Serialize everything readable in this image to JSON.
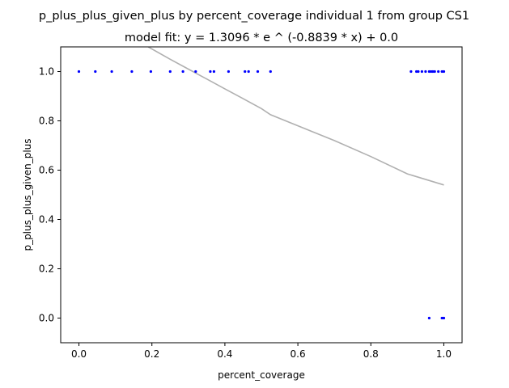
{
  "chart_data": {
    "type": "scatter",
    "title": "p_plus_plus_given_plus by percent_coverage individual 1 from group CS1",
    "subtitle": "model fit: y = 1.3096 * e ^ (-0.8839 * x) + 0.0",
    "xlabel": "percent_coverage",
    "ylabel": "p_plus_plus_given_plus",
    "xlim": [
      -0.05,
      1.05
    ],
    "ylim": [
      -0.1,
      1.1
    ],
    "x_ticks": [
      "0.0",
      "0.2",
      "0.4",
      "0.6",
      "0.8",
      "1.0"
    ],
    "y_ticks": [
      "0.0",
      "0.2",
      "0.4",
      "0.6",
      "0.8",
      "1.0"
    ],
    "grid": false,
    "legend": "none",
    "point_color": "#0000ff",
    "fit_color": "#b0b0b0",
    "points": [
      {
        "x": 0.0,
        "y": 1.0
      },
      {
        "x": 0.045,
        "y": 1.0
      },
      {
        "x": 0.09,
        "y": 1.0
      },
      {
        "x": 0.145,
        "y": 1.0
      },
      {
        "x": 0.197,
        "y": 1.0
      },
      {
        "x": 0.25,
        "y": 1.0
      },
      {
        "x": 0.285,
        "y": 1.0
      },
      {
        "x": 0.32,
        "y": 1.0
      },
      {
        "x": 0.36,
        "y": 1.0
      },
      {
        "x": 0.37,
        "y": 1.0
      },
      {
        "x": 0.41,
        "y": 1.0
      },
      {
        "x": 0.455,
        "y": 1.0
      },
      {
        "x": 0.465,
        "y": 1.0
      },
      {
        "x": 0.49,
        "y": 1.0
      },
      {
        "x": 0.525,
        "y": 1.0
      },
      {
        "x": 0.91,
        "y": 1.0
      },
      {
        "x": 0.925,
        "y": 1.0
      },
      {
        "x": 0.93,
        "y": 1.0
      },
      {
        "x": 0.94,
        "y": 1.0
      },
      {
        "x": 0.95,
        "y": 1.0
      },
      {
        "x": 0.96,
        "y": 1.0
      },
      {
        "x": 0.965,
        "y": 1.0
      },
      {
        "x": 0.97,
        "y": 1.0
      },
      {
        "x": 0.975,
        "y": 1.0
      },
      {
        "x": 0.985,
        "y": 1.0
      },
      {
        "x": 0.995,
        "y": 1.0
      },
      {
        "x": 1.0,
        "y": 1.0
      },
      {
        "x": 0.96,
        "y": 0.0
      },
      {
        "x": 0.995,
        "y": 0.0
      },
      {
        "x": 1.0,
        "y": 0.0
      }
    ],
    "fit_line": {
      "x": [
        0.19,
        0.25,
        0.3,
        0.35,
        0.4,
        0.45,
        0.5,
        0.525,
        0.6,
        0.7,
        0.8,
        0.9,
        1.0
      ],
      "y": [
        1.1,
        1.05,
        1.01,
        0.97,
        0.93,
        0.89,
        0.85,
        0.825,
        0.78,
        0.72,
        0.655,
        0.585,
        0.54
      ]
    }
  }
}
